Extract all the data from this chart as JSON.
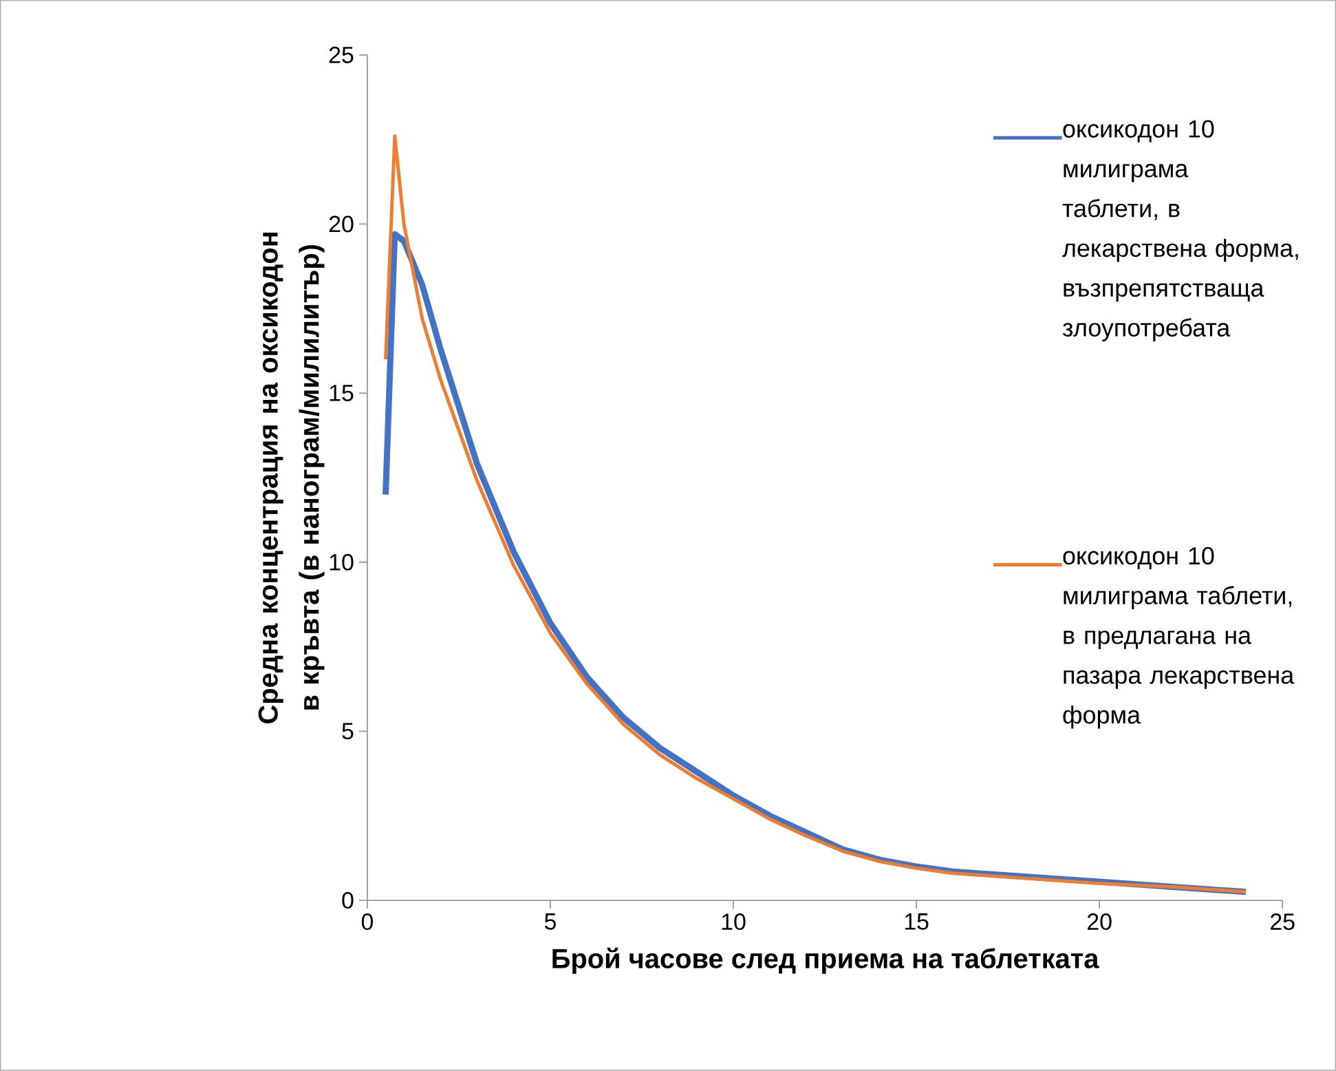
{
  "chart_data": {
    "type": "line",
    "xlabel": "Брой часове след приема на таблетката",
    "ylabel": "Средна концентрация на оксикодон в кръвта (в нанограм/милилитър)",
    "xlim": [
      0,
      25
    ],
    "xticks": [
      0,
      5,
      10,
      15,
      20,
      25
    ],
    "ylim": [
      0,
      25
    ],
    "yticks": [
      0,
      5,
      10,
      15,
      20,
      25
    ],
    "legend": "right",
    "grid": false,
    "marker": "none",
    "line_style": "solid",
    "series": [
      {
        "name": "оксикодон 10 милиграма таблети, в лекарствена форма, възпрепятстваща злоупотребата",
        "color": "#4472c4",
        "x": [
          0.5,
          0.75,
          1,
          1.5,
          2,
          3,
          4,
          5,
          6,
          7,
          8,
          9,
          10,
          11,
          12,
          13,
          14,
          15,
          16,
          18,
          20,
          22,
          24
        ],
        "values": [
          12,
          19.7,
          19.5,
          18.2,
          16.3,
          12.9,
          10.3,
          8.2,
          6.6,
          5.4,
          4.5,
          3.8,
          3.1,
          2.5,
          2.0,
          1.5,
          1.2,
          1.0,
          0.85,
          0.7,
          0.55,
          0.4,
          0.25
        ]
      },
      {
        "name": "оксикодон 10 милиграма таблети, в предлагана на пазара лекарствена форма",
        "color": "#ed7d31",
        "x": [
          0.5,
          0.75,
          1,
          1.5,
          2,
          3,
          4,
          5,
          6,
          7,
          8,
          9,
          10,
          11,
          12,
          13,
          14,
          15,
          16,
          18,
          20,
          22,
          24
        ],
        "values": [
          16,
          22.6,
          20,
          17.2,
          15.4,
          12.4,
          9.9,
          7.9,
          6.4,
          5.2,
          4.3,
          3.6,
          3.0,
          2.4,
          1.9,
          1.45,
          1.15,
          0.95,
          0.8,
          0.65,
          0.5,
          0.4,
          0.25
        ]
      }
    ]
  }
}
